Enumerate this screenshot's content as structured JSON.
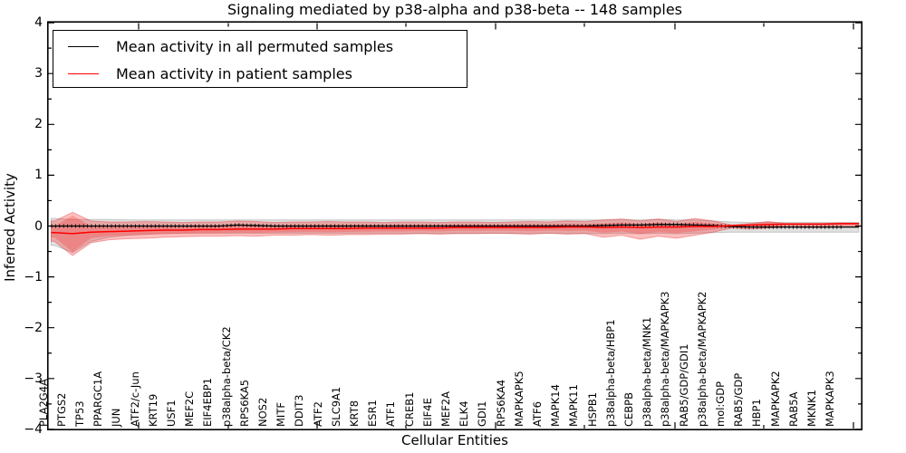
{
  "title": "Signaling mediated by p38-alpha and p38-beta -- 148 samples",
  "legend": {
    "items": [
      {
        "label": "Mean activity in all permuted samples",
        "color": "#000000"
      },
      {
        "label": "Mean activity in patient samples",
        "color": "#ff0000"
      }
    ]
  },
  "axes": {
    "xlabel": "Cellular Entities",
    "ylabel": "Inferred Activity"
  },
  "chart_data": {
    "type": "line",
    "title": "Signaling mediated by p38-alpha and p38-beta -- 148 samples",
    "xlabel": "Cellular Entities",
    "ylabel": "Inferred Activity",
    "ylim": [
      -4,
      4
    ],
    "yticks": [
      -4,
      -3,
      -2,
      -1,
      0,
      1,
      2,
      3,
      4
    ],
    "grid": false,
    "legend_position": "upper left",
    "categories": [
      "PLA2G4A",
      "PTGS2",
      "TP53",
      "PPARGC1A",
      "JUN",
      "ATF2/c-Jun",
      "KRT19",
      "USF1",
      "MEF2C",
      "EIF4EBP1",
      "p38alpha-beta/CK2",
      "RPS6KA5",
      "NOS2",
      "MITF",
      "DDIT3",
      "ATF2",
      "SLC9A1",
      "KRT8",
      "ESR1",
      "ATF1",
      "CREB1",
      "EIF4E",
      "MEF2A",
      "ELK4",
      "GDI1",
      "RPS6KA4",
      "MAPKAPK5",
      "ATF6",
      "MAPK14",
      "MAPK11",
      "HSPB1",
      "p38alpha-beta/HBP1",
      "CEBPB",
      "p38alpha-beta/MNK1",
      "p38alpha-beta/MAPKAPK3",
      "RAB5/GDP/GDI1",
      "p38alpha-beta/MAPKAPK2",
      "mol:GDP",
      "RAB5/GDP",
      "HBP1",
      "MAPKAPK2",
      "RAB5A",
      "MKNK1",
      "MAPKAPK3"
    ],
    "series": [
      {
        "name": "Mean activity in all permuted samples",
        "color": "#000000",
        "band_color": "#bdbdbd",
        "values": [
          0,
          0,
          0,
          0,
          0,
          0,
          0,
          0,
          0,
          0,
          0.02,
          0.01,
          0,
          0,
          0,
          0,
          0,
          0,
          0,
          0,
          0,
          0,
          0,
          0,
          0,
          0,
          0,
          0,
          0,
          0,
          0.01,
          0.02,
          0.02,
          0.03,
          0.03,
          0.02,
          0.01,
          -0.01,
          -0.02,
          -0.02,
          -0.02,
          -0.02,
          -0.02,
          -0.02
        ],
        "band_top": [
          0.15,
          0.13,
          0.13,
          0.13,
          0.12,
          0.12,
          0.12,
          0.12,
          0.12,
          0.12,
          0.12,
          0.12,
          0.12,
          0.12,
          0.12,
          0.12,
          0.12,
          0.12,
          0.12,
          0.12,
          0.12,
          0.12,
          0.12,
          0.12,
          0.12,
          0.12,
          0.12,
          0.12,
          0.12,
          0.12,
          0.12,
          0.12,
          0.12,
          0.13,
          0.12,
          0.12,
          0.1,
          0.08,
          0.07,
          0.07,
          0.07,
          0.07,
          0.07,
          0.07
        ],
        "band_bottom": [
          -0.38,
          -0.52,
          -0.3,
          -0.22,
          -0.18,
          -0.16,
          -0.15,
          -0.14,
          -0.14,
          -0.14,
          -0.14,
          -0.14,
          -0.14,
          -0.14,
          -0.14,
          -0.14,
          -0.14,
          -0.14,
          -0.14,
          -0.14,
          -0.14,
          -0.14,
          -0.14,
          -0.14,
          -0.14,
          -0.14,
          -0.14,
          -0.14,
          -0.14,
          -0.14,
          -0.15,
          -0.14,
          -0.15,
          -0.14,
          -0.15,
          -0.14,
          -0.13,
          -0.12,
          -0.12,
          -0.12,
          -0.12,
          -0.12,
          -0.12,
          -0.12
        ]
      },
      {
        "name": "Mean activity in patient samples",
        "color": "#ff0000",
        "band_color": "#ff9999",
        "values": [
          -0.13,
          -0.15,
          -0.12,
          -0.11,
          -0.1,
          -0.09,
          -0.08,
          -0.08,
          -0.07,
          -0.07,
          -0.06,
          -0.06,
          -0.06,
          -0.05,
          -0.05,
          -0.05,
          -0.05,
          -0.04,
          -0.04,
          -0.04,
          -0.04,
          -0.04,
          -0.03,
          -0.03,
          -0.03,
          -0.03,
          -0.03,
          -0.03,
          -0.02,
          -0.02,
          -0.03,
          -0.02,
          -0.03,
          -0.02,
          -0.02,
          -0.01,
          -0.01,
          0.01,
          0.02,
          0.03,
          0.04,
          0.04,
          0.04,
          0.05
        ],
        "band_top": [
          0.1,
          0.27,
          0.1,
          0.08,
          0.08,
          0.09,
          0.08,
          0.07,
          0.08,
          0.08,
          0.1,
          0.09,
          0.07,
          0.08,
          0.08,
          0.09,
          0.08,
          0.08,
          0.07,
          0.08,
          0.08,
          0.07,
          0.08,
          0.08,
          0.07,
          0.08,
          0.09,
          0.08,
          0.1,
          0.09,
          0.12,
          0.14,
          0.1,
          0.14,
          0.09,
          0.15,
          0.1,
          0.02,
          0.05,
          0.09,
          0.05,
          0.05,
          0.05,
          0.06
        ],
        "band_bottom": [
          -0.3,
          -0.58,
          -0.33,
          -0.27,
          -0.25,
          -0.24,
          -0.22,
          -0.21,
          -0.2,
          -0.2,
          -0.19,
          -0.2,
          -0.18,
          -0.18,
          -0.17,
          -0.18,
          -0.17,
          -0.17,
          -0.16,
          -0.16,
          -0.15,
          -0.16,
          -0.15,
          -0.15,
          -0.14,
          -0.15,
          -0.16,
          -0.14,
          -0.16,
          -0.15,
          -0.22,
          -0.18,
          -0.26,
          -0.2,
          -0.24,
          -0.18,
          -0.12,
          -0.04,
          -0.06,
          -0.04,
          -0.02,
          -0.03,
          -0.03,
          -0.02
        ]
      }
    ]
  }
}
